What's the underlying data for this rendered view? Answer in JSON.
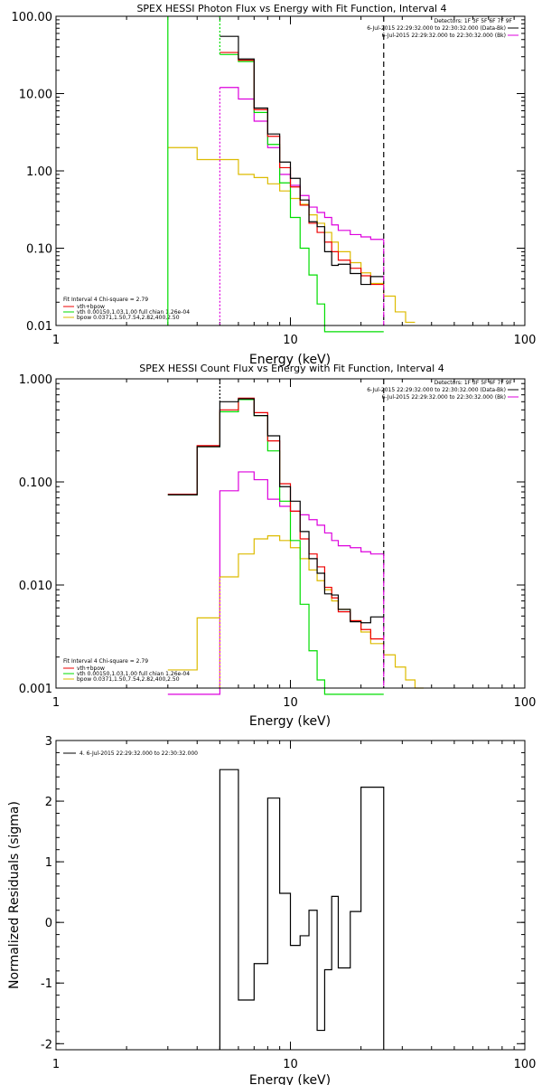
{
  "colors": {
    "total": "#000000",
    "sum": "#ee0000",
    "vth": "#00dd00",
    "bpow": "#ddbb00",
    "bk": "#dd00dd",
    "bg": "#ffffff"
  },
  "chart_data": [
    {
      "id": "photon",
      "type": "line",
      "step": true,
      "title": "SPEX HESSI Photon Flux vs Energy with Fit Function, Interval 4",
      "xlabel": "Energy (keV)",
      "ylabel": "",
      "xscale": "log",
      "yscale": "log",
      "xlim": [
        1,
        100
      ],
      "ylim": [
        0.01,
        100
      ],
      "xticks": [
        1,
        10,
        100
      ],
      "xtick_labels": [
        "1",
        "10",
        "100"
      ],
      "yticks": [
        0.01,
        0.1,
        1,
        10,
        100
      ],
      "ytick_labels": [
        "0.01",
        "0.10",
        "1.00",
        "10.00",
        "100.00"
      ],
      "grid": false,
      "legend_left": {
        "header": "Fit Interval 4   Chi-square = 2.79",
        "items": [
          {
            "label": "vth+bpow",
            "color": "#ee0000"
          },
          {
            "label": "vth 0.00150,1.03,1.00  full chian 1.26e-04",
            "color": "#00dd00"
          },
          {
            "label": "bpow 0.0371,1.50,7.54,2.82,400,2.50",
            "color": "#ddbb00"
          }
        ]
      },
      "legend_right": {
        "header": "Detectors: 1F 3F 5F 6F 7F 9F",
        "items": [
          {
            "label": "6-Jul-2015 22:29:32.000 to 22:30:32.000 (Data-Bk)",
            "color": "#000000"
          },
          {
            "label": "6-Jul-2015 22:29:32.000 to 22:30:32.000 (Bk)",
            "color": "#dd00dd"
          }
        ]
      },
      "markers": {
        "dotted_green": 5,
        "dotted_magenta": 5,
        "dashed": 25,
        "solid_green": 3
      },
      "edges": [
        5,
        6,
        7,
        8,
        9,
        10,
        11,
        12,
        13,
        14,
        15,
        16,
        18,
        20,
        22,
        25
      ],
      "series": [
        {
          "key": "bk",
          "color": "#dd00dd",
          "values": [
            12,
            8.5,
            4.4,
            2.0,
            0.9,
            0.65,
            0.48,
            0.34,
            0.29,
            0.25,
            0.2,
            0.17,
            0.15,
            0.14,
            0.13
          ]
        },
        {
          "key": "vth",
          "color": "#00dd00",
          "values": [
            32,
            26,
            5.7,
            2.2,
            0.7,
            0.25,
            0.1,
            0.045,
            0.019,
            0.0,
            0.0,
            0.0,
            0.0,
            0.0,
            0.0
          ]
        },
        {
          "key": "sum",
          "color": "#ee0000",
          "values": [
            34,
            27,
            6.2,
            2.8,
            1.1,
            0.62,
            0.36,
            0.21,
            0.16,
            0.12,
            0.09,
            0.07,
            0.055,
            0.044,
            0.034
          ]
        },
        {
          "key": "total",
          "color": "#000000",
          "values": [
            55,
            28,
            6.5,
            3.0,
            1.3,
            0.8,
            0.42,
            0.22,
            0.19,
            0.09,
            0.06,
            0.062,
            0.047,
            0.034,
            0.043
          ]
        }
      ],
      "bpow_steps": [
        [
          3,
          2.0
        ],
        [
          4,
          1.4
        ],
        [
          5,
          1.4
        ],
        [
          6,
          0.9
        ],
        [
          7,
          0.82
        ],
        [
          8,
          0.68
        ],
        [
          9,
          0.55
        ],
        [
          10,
          0.44
        ],
        [
          11,
          0.37
        ],
        [
          12,
          0.27
        ],
        [
          13,
          0.21
        ],
        [
          14,
          0.16
        ],
        [
          15,
          0.12
        ],
        [
          16,
          0.09
        ],
        [
          18,
          0.065
        ],
        [
          20,
          0.048
        ],
        [
          22,
          0.035
        ],
        [
          25,
          0.024
        ],
        [
          28,
          0.015
        ],
        [
          31,
          0.011
        ],
        [
          34,
          0.0
        ]
      ]
    },
    {
      "id": "count",
      "type": "line",
      "step": true,
      "title": "SPEX HESSI Count Flux vs Energy with Fit Function, Interval 4",
      "xlabel": "Energy (keV)",
      "ylabel": "",
      "xscale": "log",
      "yscale": "log",
      "xlim": [
        1,
        100
      ],
      "ylim": [
        0.001,
        1
      ],
      "xticks": [
        1,
        10,
        100
      ],
      "xtick_labels": [
        "1",
        "10",
        "100"
      ],
      "yticks": [
        0.001,
        0.01,
        0.1,
        1
      ],
      "ytick_labels": [
        "0.001",
        "0.010",
        "0.100",
        "1.000"
      ],
      "grid": false,
      "legend_left": {
        "header": "Fit Interval 4   Chi-square = 2.79",
        "items": [
          {
            "label": "vth+bpow",
            "color": "#ee0000"
          },
          {
            "label": "vth 0.00150,1.03,1.00  full chian 1.26e-04",
            "color": "#00dd00"
          },
          {
            "label": "bpow 0.0371,1.50,7.54,2.82,400,2.50",
            "color": "#ddbb00"
          }
        ]
      },
      "legend_right": {
        "header": "Detectors: 1F 3F 5F 6F 7F 9F",
        "items": [
          {
            "label": "6-Jul-2015 22:29:32.000 to 22:30:32.000 (Data-Bk)",
            "color": "#000000"
          },
          {
            "label": "6-Jul-2015 22:29:32.000 to 22:30:32.000 (Bk)",
            "color": "#dd00dd"
          }
        ]
      },
      "markers": {
        "dotted_black": 5,
        "dotted_gold": 5,
        "dashed": 25
      },
      "edges": [
        3,
        4,
        5,
        6,
        7,
        8,
        9,
        10,
        11,
        12,
        13,
        14,
        15,
        16,
        18,
        20,
        22,
        25
      ],
      "series": [
        {
          "key": "bk",
          "color": "#dd00dd",
          "values": [
            0.0,
            0.0,
            0.082,
            0.125,
            0.105,
            0.068,
            0.058,
            0.052,
            0.048,
            0.043,
            0.038,
            0.032,
            0.027,
            0.024,
            0.023,
            0.021,
            0.02
          ]
        },
        {
          "key": "vth",
          "color": "#00dd00",
          "values": [
            0.075,
            0.22,
            0.48,
            0.63,
            0.44,
            0.2,
            0.065,
            0.027,
            0.0065,
            0.0023,
            0.0012,
            0.0,
            0.0,
            0.0,
            0.0,
            0.0,
            0.0
          ]
        },
        {
          "key": "sum",
          "color": "#ee0000",
          "values": [
            0.076,
            0.225,
            0.5,
            0.65,
            0.47,
            0.25,
            0.096,
            0.052,
            0.028,
            0.02,
            0.015,
            0.0095,
            0.0075,
            0.0055,
            0.0045,
            0.0037,
            0.003
          ]
        },
        {
          "key": "total",
          "color": "#000000",
          "values": [
            0.075,
            0.22,
            0.6,
            0.64,
            0.44,
            0.28,
            0.09,
            0.065,
            0.033,
            0.018,
            0.013,
            0.0082,
            0.008,
            0.0058,
            0.0044,
            0.0043,
            0.0049
          ]
        }
      ],
      "bpow_steps": [
        [
          3,
          0.0015
        ],
        [
          4,
          0.0048
        ],
        [
          5,
          0.012
        ],
        [
          6,
          0.02
        ],
        [
          7,
          0.028
        ],
        [
          8,
          0.03
        ],
        [
          9,
          0.027
        ],
        [
          10,
          0.023
        ],
        [
          11,
          0.018
        ],
        [
          12,
          0.014
        ],
        [
          13,
          0.011
        ],
        [
          14,
          0.009
        ],
        [
          15,
          0.007
        ],
        [
          16,
          0.0058
        ],
        [
          18,
          0.0045
        ],
        [
          20,
          0.0035
        ],
        [
          22,
          0.0027
        ],
        [
          25,
          0.0021
        ],
        [
          28,
          0.0016
        ],
        [
          31,
          0.0012
        ],
        [
          34,
          0.001
        ],
        [
          37,
          0.0
        ]
      ]
    },
    {
      "id": "resid",
      "type": "line",
      "step": true,
      "title": "",
      "xlabel": "Energy (keV)",
      "ylabel": "Normalized Residuals (sigma)",
      "xscale": "log",
      "yscale": "linear",
      "xlim": [
        1,
        100
      ],
      "ylim": [
        -2.1,
        3.0
      ],
      "xticks": [
        1,
        10,
        100
      ],
      "xtick_labels": [
        "1",
        "10",
        "100"
      ],
      "yticks": [
        -2,
        -1,
        0,
        1,
        2,
        3
      ],
      "ytick_labels": [
        "-2",
        "-1",
        "0",
        "1",
        "2",
        "3"
      ],
      "grid": false,
      "legend": {
        "label": "4.  6-Jul-2015 22:29:32.000 to 22:30:32.000",
        "color": "#000000"
      },
      "edges": [
        5,
        6,
        7,
        8,
        9,
        10,
        11,
        12,
        13,
        14,
        15,
        16,
        18,
        20,
        22,
        25
      ],
      "values": [
        2.52,
        -1.28,
        -0.68,
        2.05,
        0.48,
        -0.38,
        -0.22,
        0.2,
        -1.78,
        -0.78,
        0.43,
        -0.75,
        0.18,
        2.23,
        2.23
      ]
    }
  ]
}
